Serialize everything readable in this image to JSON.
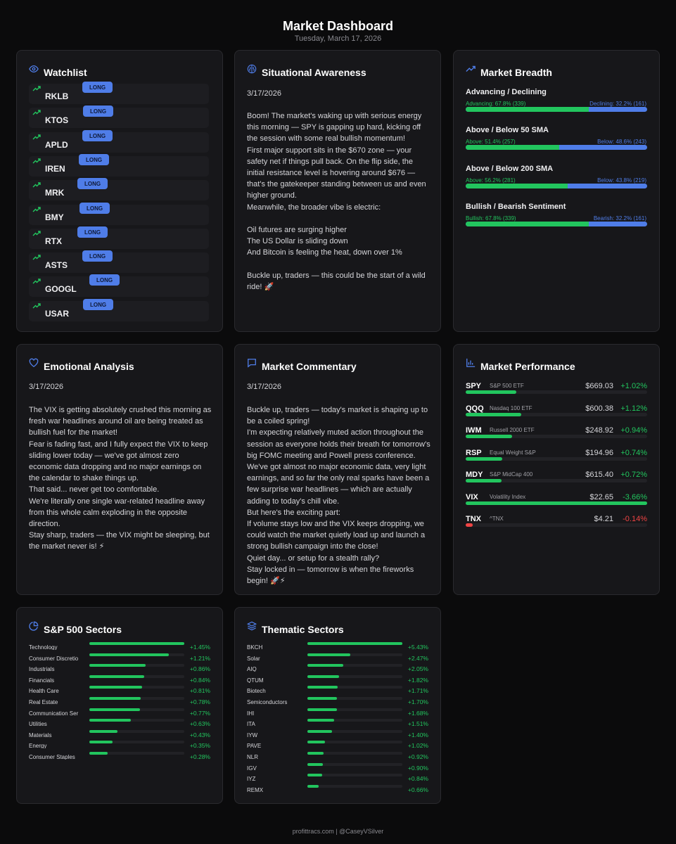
{
  "header": {
    "title": "Market Dashboard",
    "date": "Tuesday, March 17, 2026"
  },
  "colors": {
    "green": "#22c55e",
    "blue": "#4f7de8",
    "red": "#ef4444",
    "bg": "#0b0b0c",
    "card": "#17171a"
  },
  "watchlist": {
    "title": "Watchlist",
    "icon": "eye-icon",
    "items": [
      {
        "ticker": "RKLB",
        "tag": "LONG"
      },
      {
        "ticker": "KTOS",
        "tag": "LONG"
      },
      {
        "ticker": "APLD",
        "tag": "LONG"
      },
      {
        "ticker": "IREN",
        "tag": "LONG"
      },
      {
        "ticker": "MRK",
        "tag": "LONG"
      },
      {
        "ticker": "BMY",
        "tag": "LONG"
      },
      {
        "ticker": "RTX",
        "tag": "LONG"
      },
      {
        "ticker": "ASTS",
        "tag": "LONG"
      },
      {
        "ticker": "GOOGL",
        "tag": "LONG"
      },
      {
        "ticker": "USAR",
        "tag": "LONG"
      }
    ]
  },
  "situational": {
    "title": "Situational Awareness",
    "date": "3/17/2026",
    "text": "Boom! The market's waking up with serious energy this morning — SPY is gapping up hard, kicking off the session with some real bullish momentum!\nFirst major support sits in the $670 zone — your safety net if things pull back. On the flip side, the initial resistance level is hovering around $676 — that's the gatekeeper standing between us and even higher ground.\nMeanwhile, the broader vibe is electric:\n\nOil futures are surging higher\nThe US Dollar is sliding down\nAnd Bitcoin is feeling the heat, down over 1%\n\nBuckle up, traders — this could be the start of a wild ride! 🚀"
  },
  "breadth": {
    "title": "Market Breadth",
    "rows": [
      {
        "title": "Advancing / Declining",
        "left_label": "Advancing: 67.8% (339)",
        "right_label": "Declining: 32.2% (161)",
        "left_pct": 67.8
      },
      {
        "title": "Above / Below 50 SMA",
        "left_label": "Above: 51.4% (257)",
        "right_label": "Below: 48.6% (243)",
        "left_pct": 51.4
      },
      {
        "title": "Above / Below 200 SMA",
        "left_label": "Above: 56.2% (281)",
        "right_label": "Below: 43.8% (219)",
        "left_pct": 56.2
      },
      {
        "title": "Bullish / Bearish Sentiment",
        "left_label": "Bullish: 67.8% (339)",
        "right_label": "Bearish: 32.2% (161)",
        "left_pct": 67.8
      }
    ]
  },
  "emotional": {
    "title": "Emotional Analysis",
    "date": "3/17/2026",
    "text": "The VIX is getting absolutely crushed this morning as fresh war headlines around oil are being treated as bullish fuel for the market!\nFear is fading fast, and I fully expect the VIX to keep sliding lower today — we've got almost zero economic data dropping and no major earnings on the calendar to shake things up.\nThat said... never get too comfortable.\nWe're literally one single war-related headline away from this whole calm exploding in the opposite direction.\nStay sharp, traders — the VIX might be sleeping, but the market never is! ⚡"
  },
  "commentary": {
    "title": "Market Commentary",
    "date": "3/17/2026",
    "text": "Buckle up, traders — today's market is shaping up to be a coiled spring!\nI'm expecting relatively muted action throughout the session as everyone holds their breath for tomorrow's big FOMC meeting and Powell press conference.\nWe've got almost no major economic data, very light earnings, and so far the only real sparks have been a few surprise war headlines — which are actually adding to today's chill vibe.\nBut here's the exciting part:\nIf volume stays low and the VIX keeps dropping, we could watch the market quietly load up and launch a strong bullish campaign into the close!\nQuiet day... or setup for a stealth rally?\nStay locked in — tomorrow is when the fireworks begin! 🚀⚡"
  },
  "performance": {
    "title": "Market Performance",
    "rows": [
      {
        "symbol": "SPY",
        "name": "S&P 500 ETF",
        "price": "$669.03",
        "change": "+1.02%",
        "change_value": 1.02,
        "positive": true
      },
      {
        "symbol": "QQQ",
        "name": "Nasdaq 100 ETF",
        "price": "$600.38",
        "change": "+1.12%",
        "change_value": 1.12,
        "positive": true
      },
      {
        "symbol": "IWM",
        "name": "Russell 2000 ETF",
        "price": "$248.92",
        "change": "+0.94%",
        "change_value": 0.94,
        "positive": true
      },
      {
        "symbol": "RSP",
        "name": "Equal Weight S&P",
        "price": "$194.96",
        "change": "+0.74%",
        "change_value": 0.74,
        "positive": true
      },
      {
        "symbol": "MDY",
        "name": "S&P MidCap 400",
        "price": "$615.40",
        "change": "+0.72%",
        "change_value": 0.72,
        "positive": true
      },
      {
        "symbol": "VIX",
        "name": "Volatility Index",
        "price": "$22.65",
        "change": "-3.66%",
        "change_value": -3.66,
        "positive": true
      },
      {
        "symbol": "TNX",
        "name": "^TNX",
        "price": "$4.21",
        "change": "-0.14%",
        "change_value": -0.14,
        "positive": false
      }
    ]
  },
  "sp500": {
    "title": "S&P 500 Sectors",
    "rows": [
      {
        "name": "Technology",
        "change": "+1.45%",
        "value": 1.45
      },
      {
        "name": "Consumer Discretio",
        "change": "+1.21%",
        "value": 1.21
      },
      {
        "name": "Industrials",
        "change": "+0.86%",
        "value": 0.86
      },
      {
        "name": "Financials",
        "change": "+0.84%",
        "value": 0.84
      },
      {
        "name": "Health Care",
        "change": "+0.81%",
        "value": 0.81
      },
      {
        "name": "Real Estate",
        "change": "+0.78%",
        "value": 0.78
      },
      {
        "name": "Communication Ser",
        "change": "+0.77%",
        "value": 0.77
      },
      {
        "name": "Utilities",
        "change": "+0.63%",
        "value": 0.63
      },
      {
        "name": "Materials",
        "change": "+0.43%",
        "value": 0.43
      },
      {
        "name": "Energy",
        "change": "+0.35%",
        "value": 0.35
      },
      {
        "name": "Consumer Staples",
        "change": "+0.28%",
        "value": 0.28
      }
    ]
  },
  "thematic": {
    "title": "Thematic Sectors",
    "rows": [
      {
        "name": "BKCH",
        "change": "+5.43%",
        "value": 5.43
      },
      {
        "name": "Solar",
        "change": "+2.47%",
        "value": 2.47
      },
      {
        "name": "AIQ",
        "change": "+2.05%",
        "value": 2.05
      },
      {
        "name": "QTUM",
        "change": "+1.82%",
        "value": 1.82
      },
      {
        "name": "Biotech",
        "change": "+1.71%",
        "value": 1.71
      },
      {
        "name": "Semiconductors",
        "change": "+1.70%",
        "value": 1.7
      },
      {
        "name": "IHI",
        "change": "+1.68%",
        "value": 1.68
      },
      {
        "name": "ITA",
        "change": "+1.51%",
        "value": 1.51
      },
      {
        "name": "IYW",
        "change": "+1.40%",
        "value": 1.4
      },
      {
        "name": "PAVE",
        "change": "+1.02%",
        "value": 1.02
      },
      {
        "name": "NLR",
        "change": "+0.92%",
        "value": 0.92
      },
      {
        "name": "IGV",
        "change": "+0.90%",
        "value": 0.9
      },
      {
        "name": "IYZ",
        "change": "+0.84%",
        "value": 0.84
      },
      {
        "name": "REMX",
        "change": "+0.66%",
        "value": 0.66
      }
    ]
  },
  "footer": {
    "text": "profittracs.com | @CaseyVSilver"
  }
}
